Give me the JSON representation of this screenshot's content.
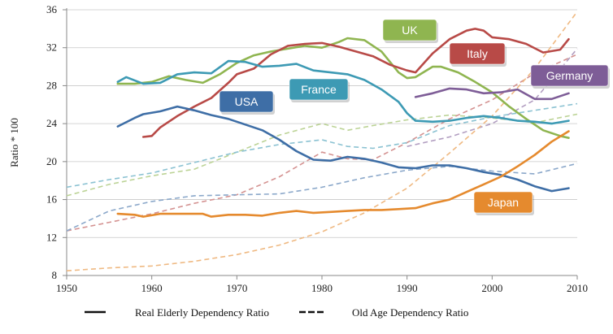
{
  "chart_data": {
    "type": "line",
    "title": "",
    "xlabel": "",
    "ylabel": "Ratio * 100",
    "xlim": [
      1950,
      2010
    ],
    "ylim": [
      8,
      36
    ],
    "x_ticks": [
      1950,
      1960,
      1970,
      1980,
      1990,
      2000,
      2010
    ],
    "y_ticks": [
      8,
      12,
      16,
      20,
      24,
      28,
      32,
      36
    ],
    "grid": "horizontal",
    "legend": {
      "placement": "bottom",
      "entries": [
        {
          "label": "Real Elderly Dependency Ratio",
          "style": "solid"
        },
        {
          "label": "Old Age Dependency Ratio",
          "style": "dashed"
        }
      ]
    },
    "series": [
      {
        "name": "UK",
        "color": "#8fb550",
        "solid": [
          [
            1956,
            28.2
          ],
          [
            1958,
            28.2
          ],
          [
            1960,
            28.4
          ],
          [
            1962,
            29.0
          ],
          [
            1964,
            28.6
          ],
          [
            1966,
            28.3
          ],
          [
            1968,
            29.2
          ],
          [
            1970,
            30.4
          ],
          [
            1972,
            31.2
          ],
          [
            1974,
            31.6
          ],
          [
            1976,
            31.9
          ],
          [
            1978,
            32.2
          ],
          [
            1980,
            32.0
          ],
          [
            1982,
            32.6
          ],
          [
            1983,
            33.0
          ],
          [
            1985,
            32.8
          ],
          [
            1987,
            31.6
          ],
          [
            1989,
            29.4
          ],
          [
            1990,
            28.8
          ],
          [
            1991,
            28.9
          ],
          [
            1993,
            30.0
          ],
          [
            1994,
            30.0
          ],
          [
            1996,
            29.4
          ],
          [
            1998,
            28.4
          ],
          [
            2000,
            27.3
          ],
          [
            2002,
            25.8
          ],
          [
            2004,
            24.5
          ],
          [
            2006,
            23.3
          ],
          [
            2008,
            22.7
          ],
          [
            2009,
            22.5
          ]
        ],
        "dashed": [
          [
            1950,
            16.4
          ],
          [
            1955,
            17.6
          ],
          [
            1960,
            18.5
          ],
          [
            1965,
            19.2
          ],
          [
            1970,
            21.0
          ],
          [
            1975,
            22.8
          ],
          [
            1980,
            24.0
          ],
          [
            1983,
            23.3
          ],
          [
            1986,
            23.8
          ],
          [
            1990,
            24.4
          ],
          [
            1995,
            24.9
          ],
          [
            2000,
            24.6
          ],
          [
            2005,
            24.1
          ],
          [
            2010,
            25.0
          ]
        ]
      },
      {
        "name": "Italy",
        "color": "#b84a47",
        "solid": [
          [
            1959,
            22.6
          ],
          [
            1960,
            22.7
          ],
          [
            1961,
            23.6
          ],
          [
            1963,
            24.8
          ],
          [
            1965,
            25.8
          ],
          [
            1967,
            26.7
          ],
          [
            1969,
            28.3
          ],
          [
            1970,
            29.2
          ],
          [
            1972,
            29.8
          ],
          [
            1974,
            31.3
          ],
          [
            1976,
            32.2
          ],
          [
            1978,
            32.4
          ],
          [
            1980,
            32.5
          ],
          [
            1982,
            32.1
          ],
          [
            1984,
            31.6
          ],
          [
            1986,
            31.1
          ],
          [
            1988,
            30.2
          ],
          [
            1990,
            29.6
          ],
          [
            1991,
            29.4
          ],
          [
            1993,
            31.4
          ],
          [
            1995,
            32.9
          ],
          [
            1997,
            33.8
          ],
          [
            1998,
            34.0
          ],
          [
            1999,
            33.8
          ],
          [
            2000,
            33.1
          ],
          [
            2002,
            32.9
          ],
          [
            2004,
            32.4
          ],
          [
            2006,
            31.5
          ],
          [
            2008,
            31.8
          ],
          [
            2009,
            32.9
          ]
        ],
        "dashed": [
          [
            1950,
            12.7
          ],
          [
            1955,
            13.6
          ],
          [
            1960,
            14.5
          ],
          [
            1965,
            15.6
          ],
          [
            1970,
            16.5
          ],
          [
            1975,
            18.4
          ],
          [
            1980,
            21.0
          ],
          [
            1983,
            20.3
          ],
          [
            1986,
            20.2
          ],
          [
            1990,
            22.0
          ],
          [
            1995,
            24.5
          ],
          [
            2000,
            26.5
          ],
          [
            2005,
            29.3
          ],
          [
            2010,
            31.3
          ]
        ]
      },
      {
        "name": "Germany",
        "color": "#7e5d97",
        "solid": [
          [
            1991,
            26.8
          ],
          [
            1993,
            27.2
          ],
          [
            1995,
            27.7
          ],
          [
            1997,
            27.6
          ],
          [
            1999,
            27.2
          ],
          [
            2001,
            27.3
          ],
          [
            2003,
            27.6
          ],
          [
            2005,
            26.6
          ],
          [
            2007,
            26.6
          ],
          [
            2009,
            27.2
          ]
        ],
        "dashed": [
          [
            1990,
            21.6
          ],
          [
            1995,
            22.6
          ],
          [
            2000,
            24.0
          ],
          [
            2005,
            26.5
          ],
          [
            2010,
            31.9
          ]
        ]
      },
      {
        "name": "France",
        "color": "#3d9ab4",
        "solid": [
          [
            1956,
            28.4
          ],
          [
            1957,
            28.9
          ],
          [
            1959,
            28.2
          ],
          [
            1961,
            28.3
          ],
          [
            1963,
            29.2
          ],
          [
            1965,
            29.4
          ],
          [
            1967,
            29.3
          ],
          [
            1969,
            30.6
          ],
          [
            1971,
            30.5
          ],
          [
            1973,
            30.0
          ],
          [
            1975,
            30.1
          ],
          [
            1977,
            30.3
          ],
          [
            1979,
            29.6
          ],
          [
            1981,
            29.4
          ],
          [
            1983,
            29.2
          ],
          [
            1985,
            28.6
          ],
          [
            1987,
            27.6
          ],
          [
            1989,
            26.3
          ],
          [
            1990,
            25.1
          ],
          [
            1991,
            24.3
          ],
          [
            1993,
            24.2
          ],
          [
            1995,
            24.3
          ],
          [
            1997,
            24.6
          ],
          [
            1999,
            24.8
          ],
          [
            2001,
            24.6
          ],
          [
            2003,
            24.3
          ],
          [
            2005,
            24.2
          ],
          [
            2007,
            24.0
          ],
          [
            2009,
            24.3
          ]
        ],
        "dashed": [
          [
            1950,
            17.3
          ],
          [
            1955,
            18.1
          ],
          [
            1960,
            18.8
          ],
          [
            1965,
            19.9
          ],
          [
            1970,
            21.0
          ],
          [
            1975,
            21.8
          ],
          [
            1980,
            22.3
          ],
          [
            1983,
            21.6
          ],
          [
            1986,
            21.4
          ],
          [
            1990,
            22.0
          ],
          [
            1995,
            23.8
          ],
          [
            2000,
            24.7
          ],
          [
            2005,
            25.4
          ],
          [
            2010,
            26.1
          ]
        ]
      },
      {
        "name": "USA",
        "color": "#3e6ea6",
        "solid": [
          [
            1956,
            23.7
          ],
          [
            1958,
            24.6
          ],
          [
            1959,
            25.0
          ],
          [
            1961,
            25.3
          ],
          [
            1963,
            25.8
          ],
          [
            1965,
            25.4
          ],
          [
            1967,
            24.9
          ],
          [
            1969,
            24.5
          ],
          [
            1971,
            23.9
          ],
          [
            1973,
            23.3
          ],
          [
            1975,
            22.3
          ],
          [
            1977,
            21.1
          ],
          [
            1979,
            20.2
          ],
          [
            1981,
            20.1
          ],
          [
            1983,
            20.5
          ],
          [
            1985,
            20.3
          ],
          [
            1987,
            19.9
          ],
          [
            1989,
            19.4
          ],
          [
            1991,
            19.3
          ],
          [
            1993,
            19.6
          ],
          [
            1995,
            19.6
          ],
          [
            1997,
            19.3
          ],
          [
            1999,
            18.9
          ],
          [
            2001,
            18.6
          ],
          [
            2003,
            18.1
          ],
          [
            2005,
            17.4
          ],
          [
            2007,
            16.9
          ],
          [
            2009,
            17.2
          ]
        ],
        "dashed": [
          [
            1950,
            12.7
          ],
          [
            1955,
            14.8
          ],
          [
            1960,
            15.8
          ],
          [
            1965,
            16.4
          ],
          [
            1970,
            16.5
          ],
          [
            1975,
            16.6
          ],
          [
            1980,
            17.3
          ],
          [
            1985,
            18.3
          ],
          [
            1990,
            19.1
          ],
          [
            1995,
            19.5
          ],
          [
            2000,
            19.0
          ],
          [
            2005,
            18.7
          ],
          [
            2010,
            19.8
          ]
        ]
      },
      {
        "name": "Japan",
        "color": "#e58a2e",
        "solid": [
          [
            1956,
            14.5
          ],
          [
            1958,
            14.4
          ],
          [
            1959,
            14.2
          ],
          [
            1961,
            14.5
          ],
          [
            1963,
            14.5
          ],
          [
            1966,
            14.5
          ],
          [
            1967,
            14.2
          ],
          [
            1969,
            14.4
          ],
          [
            1971,
            14.4
          ],
          [
            1973,
            14.3
          ],
          [
            1975,
            14.6
          ],
          [
            1977,
            14.8
          ],
          [
            1979,
            14.6
          ],
          [
            1981,
            14.7
          ],
          [
            1983,
            14.8
          ],
          [
            1985,
            14.9
          ],
          [
            1987,
            14.9
          ],
          [
            1989,
            15.0
          ],
          [
            1991,
            15.1
          ],
          [
            1993,
            15.6
          ],
          [
            1995,
            16.0
          ],
          [
            1997,
            16.8
          ],
          [
            1999,
            17.6
          ],
          [
            2001,
            18.4
          ],
          [
            2003,
            19.5
          ],
          [
            2005,
            20.7
          ],
          [
            2007,
            22.1
          ],
          [
            2009,
            23.2
          ]
        ],
        "dashed": [
          [
            1950,
            8.5
          ],
          [
            1955,
            8.8
          ],
          [
            1960,
            9.0
          ],
          [
            1965,
            9.5
          ],
          [
            1970,
            10.2
          ],
          [
            1975,
            11.2
          ],
          [
            1980,
            12.6
          ],
          [
            1985,
            14.6
          ],
          [
            1990,
            17.2
          ],
          [
            1995,
            20.9
          ],
          [
            2000,
            24.8
          ],
          [
            2005,
            29.8
          ],
          [
            2010,
            35.8
          ]
        ]
      }
    ],
    "annotations": [
      {
        "label": "UK",
        "series": "UK"
      },
      {
        "label": "Italy",
        "series": "Italy"
      },
      {
        "label": "Germany",
        "series": "Germany"
      },
      {
        "label": "France",
        "series": "France"
      },
      {
        "label": "USA",
        "series": "USA"
      },
      {
        "label": "Japan",
        "series": "Japan"
      }
    ]
  }
}
